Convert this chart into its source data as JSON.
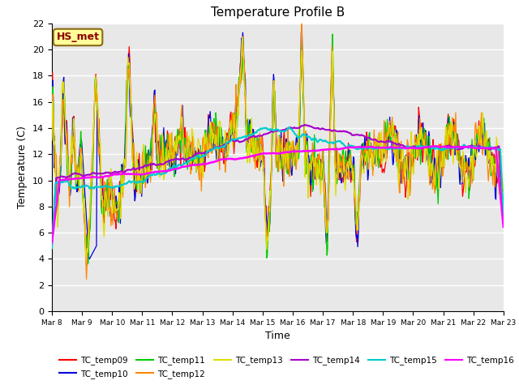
{
  "title": "Temperature Profile B",
  "xlabel": "Time",
  "ylabel": "Temperature (C)",
  "ylim": [
    0,
    22
  ],
  "xlim": [
    0,
    15
  ],
  "annotation": "HS_met",
  "series_colors": {
    "TC_temp09": "#ff0000",
    "TC_temp10": "#0000dd",
    "TC_temp11": "#00cc00",
    "TC_temp12": "#ff8800",
    "TC_temp13": "#dddd00",
    "TC_temp14": "#aa00cc",
    "TC_temp15": "#00cccc",
    "TC_temp16": "#ff00ff"
  },
  "x_tick_labels": [
    "Mar 8",
    "Mar 9",
    "Mar 10",
    "Mar 11",
    "Mar 12",
    "Mar 13",
    "Mar 14",
    "Mar 15",
    "Mar 16",
    "Mar 17",
    "Mar 18",
    "Mar 19",
    "Mar 20",
    "Mar 21",
    "Mar 22",
    "Mar 23"
  ],
  "yticks": [
    0,
    2,
    4,
    6,
    8,
    10,
    12,
    14,
    16,
    18,
    20,
    22
  ],
  "figsize": [
    6.4,
    4.8
  ],
  "dpi": 100,
  "facecolor": "#e8e8e8",
  "grid_color": "#ffffff",
  "annotation_facecolor": "#ffff99",
  "annotation_edgecolor": "#8b6914",
  "annotation_textcolor": "#8b0000",
  "legend_ncol_row1": 6,
  "legend_ncol_row2": 2
}
